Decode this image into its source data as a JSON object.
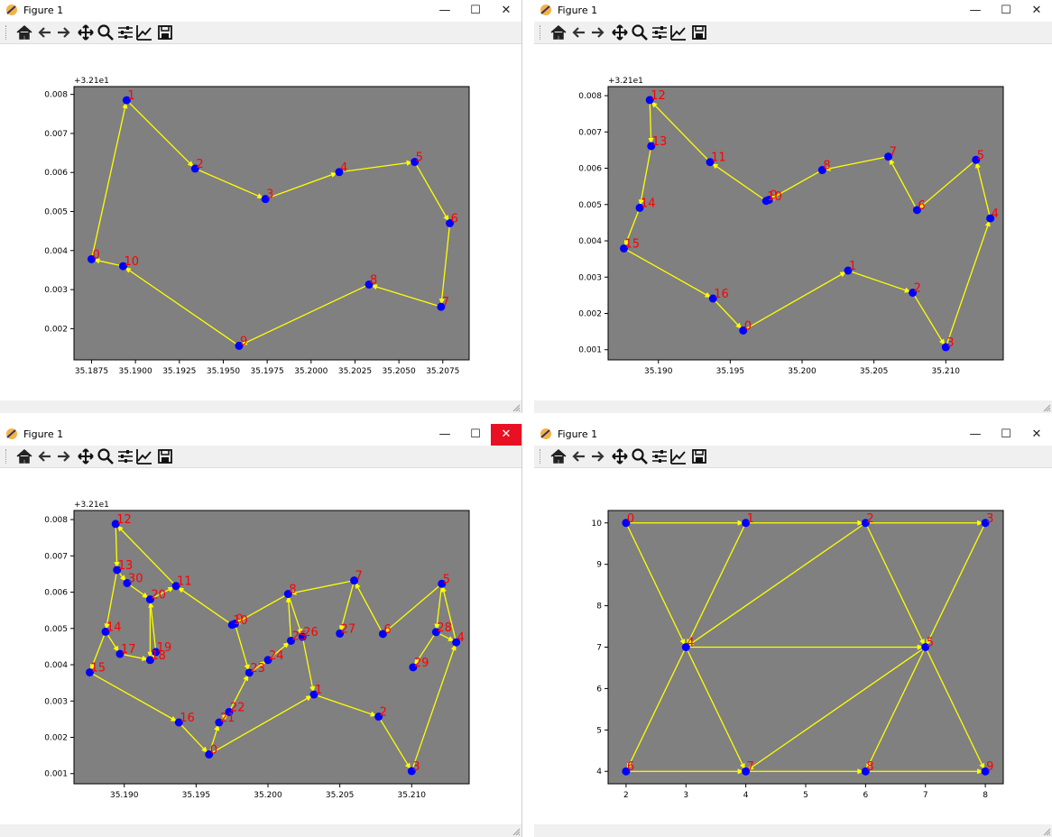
{
  "windows": [
    {
      "title": "Figure 1",
      "close_highlight": false
    },
    {
      "title": "Figure 1",
      "close_highlight": false
    },
    {
      "title": "Figure 1",
      "close_highlight": true
    },
    {
      "title": "Figure 1",
      "close_highlight": false
    }
  ],
  "toolbar": {
    "icons": [
      "home-icon",
      "back-arrow-icon",
      "forward-arrow-icon",
      "pan-icon",
      "zoom-icon",
      "subplots-icon",
      "edit-axis-icon",
      "save-icon"
    ]
  },
  "colors": {
    "plot_bg": "#808080",
    "edge": "#ffff00",
    "node": "#0000ff",
    "label": "#ff0000"
  },
  "chart_data": [
    {
      "type": "scatter",
      "offset_label": "+3.21e1",
      "xlim": [
        35.1865,
        35.209
      ],
      "ylim": [
        0.0012,
        0.0082
      ],
      "xticks": [
        "35.1875",
        "35.1900",
        "35.1925",
        "35.1950",
        "35.1975",
        "35.2000",
        "35.2025",
        "35.2050",
        "35.2075"
      ],
      "yticks": [
        "0.002",
        "0.003",
        "0.004",
        "0.005",
        "0.006",
        "0.007",
        "0.008"
      ],
      "nodes": [
        {
          "label": "0",
          "x": 35.1875,
          "y": 0.00378
        },
        {
          "label": "1",
          "x": 35.1895,
          "y": 0.00785
        },
        {
          "label": "2",
          "x": 35.1934,
          "y": 0.0061
        },
        {
          "label": "3",
          "x": 35.1974,
          "y": 0.00532
        },
        {
          "label": "4",
          "x": 35.2016,
          "y": 0.00601
        },
        {
          "label": "5",
          "x": 35.2059,
          "y": 0.00627
        },
        {
          "label": "6",
          "x": 35.2079,
          "y": 0.0047
        },
        {
          "label": "7",
          "x": 35.2074,
          "y": 0.00256
        },
        {
          "label": "8",
          "x": 35.2033,
          "y": 0.00313
        },
        {
          "label": "9",
          "x": 35.1959,
          "y": 0.00156
        },
        {
          "label": "10",
          "x": 35.1893,
          "y": 0.0036
        }
      ],
      "edges": [
        [
          0,
          1
        ],
        [
          1,
          2
        ],
        [
          2,
          3
        ],
        [
          3,
          4
        ],
        [
          4,
          5
        ],
        [
          5,
          6
        ],
        [
          6,
          7
        ],
        [
          7,
          8
        ],
        [
          8,
          9
        ],
        [
          9,
          10
        ],
        [
          10,
          0
        ]
      ]
    },
    {
      "type": "scatter",
      "offset_label": "+3.21e1",
      "xlim": [
        35.1865,
        35.214
      ],
      "ylim": [
        0.00072,
        0.00825
      ],
      "xticks": [
        "35.190",
        "35.195",
        "35.200",
        "35.205",
        "35.210"
      ],
      "yticks": [
        "0.001",
        "0.002",
        "0.003",
        "0.004",
        "0.005",
        "0.006",
        "0.007",
        "0.008"
      ],
      "nodes": [
        {
          "label": "0",
          "x": 35.1959,
          "y": 0.00153
        },
        {
          "label": "1",
          "x": 35.2032,
          "y": 0.00318
        },
        {
          "label": "2",
          "x": 35.2077,
          "y": 0.00257
        },
        {
          "label": "3",
          "x": 35.21,
          "y": 0.00107
        },
        {
          "label": "4",
          "x": 35.2131,
          "y": 0.00462
        },
        {
          "label": "5",
          "x": 35.2121,
          "y": 0.00623
        },
        {
          "label": "6",
          "x": 35.208,
          "y": 0.00485
        },
        {
          "label": "7",
          "x": 35.206,
          "y": 0.00632
        },
        {
          "label": "8",
          "x": 35.2014,
          "y": 0.00595
        },
        {
          "label": "9",
          "x": 35.1977,
          "y": 0.00513
        },
        {
          "label": "10",
          "x": 35.1975,
          "y": 0.0051
        },
        {
          "label": "11",
          "x": 35.1936,
          "y": 0.00617
        },
        {
          "label": "12",
          "x": 35.1894,
          "y": 0.00788
        },
        {
          "label": "13",
          "x": 35.1895,
          "y": 0.00661
        },
        {
          "label": "14",
          "x": 35.1887,
          "y": 0.00491
        },
        {
          "label": "15",
          "x": 35.1876,
          "y": 0.00379
        },
        {
          "label": "16",
          "x": 35.1938,
          "y": 0.00241
        }
      ],
      "edges": [
        [
          0,
          1
        ],
        [
          1,
          2
        ],
        [
          2,
          3
        ],
        [
          3,
          4
        ],
        [
          4,
          5
        ],
        [
          5,
          6
        ],
        [
          6,
          7
        ],
        [
          7,
          8
        ],
        [
          8,
          9
        ],
        [
          9,
          10
        ],
        [
          10,
          11
        ],
        [
          11,
          12
        ],
        [
          12,
          13
        ],
        [
          13,
          14
        ],
        [
          14,
          15
        ],
        [
          15,
          16
        ],
        [
          16,
          0
        ]
      ]
    },
    {
      "type": "scatter",
      "offset_label": "+3.21e1",
      "xlim": [
        35.1865,
        35.214
      ],
      "ylim": [
        0.00072,
        0.00825
      ],
      "xticks": [
        "35.190",
        "35.195",
        "35.200",
        "35.205",
        "35.210"
      ],
      "yticks": [
        "0.001",
        "0.002",
        "0.003",
        "0.004",
        "0.005",
        "0.006",
        "0.007",
        "0.008"
      ],
      "nodes": [
        {
          "label": "0",
          "x": 35.1959,
          "y": 0.00153
        },
        {
          "label": "1",
          "x": 35.2032,
          "y": 0.00318
        },
        {
          "label": "2",
          "x": 35.2077,
          "y": 0.00257
        },
        {
          "label": "3",
          "x": 35.21,
          "y": 0.00107
        },
        {
          "label": "4",
          "x": 35.2131,
          "y": 0.00462
        },
        {
          "label": "5",
          "x": 35.2121,
          "y": 0.00623
        },
        {
          "label": "6",
          "x": 35.208,
          "y": 0.00485
        },
        {
          "label": "7",
          "x": 35.206,
          "y": 0.00632
        },
        {
          "label": "8",
          "x": 35.2014,
          "y": 0.00595
        },
        {
          "label": "9",
          "x": 35.1977,
          "y": 0.00513
        },
        {
          "label": "10",
          "x": 35.1975,
          "y": 0.0051
        },
        {
          "label": "11",
          "x": 35.1936,
          "y": 0.00617
        },
        {
          "label": "12",
          "x": 35.1894,
          "y": 0.00788
        },
        {
          "label": "13",
          "x": 35.1895,
          "y": 0.00661
        },
        {
          "label": "14",
          "x": 35.1887,
          "y": 0.00491
        },
        {
          "label": "15",
          "x": 35.1876,
          "y": 0.00379
        },
        {
          "label": "16",
          "x": 35.1938,
          "y": 0.00241
        },
        {
          "label": "17",
          "x": 35.1897,
          "y": 0.0043
        },
        {
          "label": "18",
          "x": 35.1918,
          "y": 0.00413
        },
        {
          "label": "19",
          "x": 35.1922,
          "y": 0.00435
        },
        {
          "label": "20",
          "x": 35.1918,
          "y": 0.0058
        },
        {
          "label": "21",
          "x": 35.1966,
          "y": 0.00241
        },
        {
          "label": "22",
          "x": 35.1973,
          "y": 0.0027
        },
        {
          "label": "23",
          "x": 35.1987,
          "y": 0.00378
        },
        {
          "label": "24",
          "x": 35.2,
          "y": 0.00413
        },
        {
          "label": "25",
          "x": 35.2016,
          "y": 0.00466
        },
        {
          "label": "26",
          "x": 35.2024,
          "y": 0.00477
        },
        {
          "label": "27",
          "x": 35.205,
          "y": 0.00486
        },
        {
          "label": "28",
          "x": 35.2117,
          "y": 0.0049
        },
        {
          "label": "29",
          "x": 35.2101,
          "y": 0.00393
        },
        {
          "label": "30",
          "x": 35.1902,
          "y": 0.00625
        }
      ],
      "edges": [
        [
          0,
          1
        ],
        [
          1,
          2
        ],
        [
          2,
          3
        ],
        [
          3,
          4
        ],
        [
          4,
          5
        ],
        [
          5,
          6
        ],
        [
          6,
          7
        ],
        [
          7,
          8
        ],
        [
          8,
          9
        ],
        [
          9,
          10
        ],
        [
          10,
          11
        ],
        [
          11,
          12
        ],
        [
          12,
          13
        ],
        [
          13,
          14
        ],
        [
          14,
          15
        ],
        [
          15,
          16
        ],
        [
          16,
          0
        ],
        [
          0,
          21
        ],
        [
          21,
          22
        ],
        [
          22,
          23
        ],
        [
          23,
          24
        ],
        [
          24,
          25
        ],
        [
          25,
          8
        ],
        [
          8,
          26
        ],
        [
          26,
          1
        ],
        [
          7,
          27
        ],
        [
          5,
          28
        ],
        [
          28,
          4
        ],
        [
          28,
          29
        ],
        [
          14,
          17
        ],
        [
          17,
          18
        ],
        [
          18,
          19
        ],
        [
          19,
          20
        ],
        [
          20,
          18
        ],
        [
          20,
          11
        ],
        [
          13,
          30
        ],
        [
          30,
          20
        ],
        [
          9,
          23
        ]
      ]
    },
    {
      "type": "scatter",
      "offset_label": "",
      "xlim": [
        1.7,
        8.3
      ],
      "ylim": [
        3.7,
        10.3
      ],
      "xticks": [
        "2",
        "3",
        "4",
        "5",
        "6",
        "7",
        "8"
      ],
      "yticks": [
        "4",
        "5",
        "6",
        "7",
        "8",
        "9",
        "10"
      ],
      "nodes": [
        {
          "label": "0",
          "x": 2,
          "y": 10
        },
        {
          "label": "1",
          "x": 4,
          "y": 10
        },
        {
          "label": "2",
          "x": 6,
          "y": 10
        },
        {
          "label": "3",
          "x": 8,
          "y": 10
        },
        {
          "label": "4",
          "x": 3,
          "y": 7
        },
        {
          "label": "5",
          "x": 7,
          "y": 7
        },
        {
          "label": "6",
          "x": 2,
          "y": 4
        },
        {
          "label": "7",
          "x": 4,
          "y": 4
        },
        {
          "label": "8",
          "x": 6,
          "y": 4
        },
        {
          "label": "9",
          "x": 8,
          "y": 4
        }
      ],
      "edges": [
        [
          0,
          1
        ],
        [
          1,
          2
        ],
        [
          2,
          3
        ],
        [
          0,
          4
        ],
        [
          1,
          4
        ],
        [
          2,
          4
        ],
        [
          2,
          5
        ],
        [
          3,
          5
        ],
        [
          4,
          5
        ],
        [
          4,
          6
        ],
        [
          4,
          7
        ],
        [
          5,
          7
        ],
        [
          5,
          8
        ],
        [
          5,
          9
        ],
        [
          6,
          7
        ],
        [
          7,
          8
        ],
        [
          8,
          9
        ]
      ]
    }
  ]
}
